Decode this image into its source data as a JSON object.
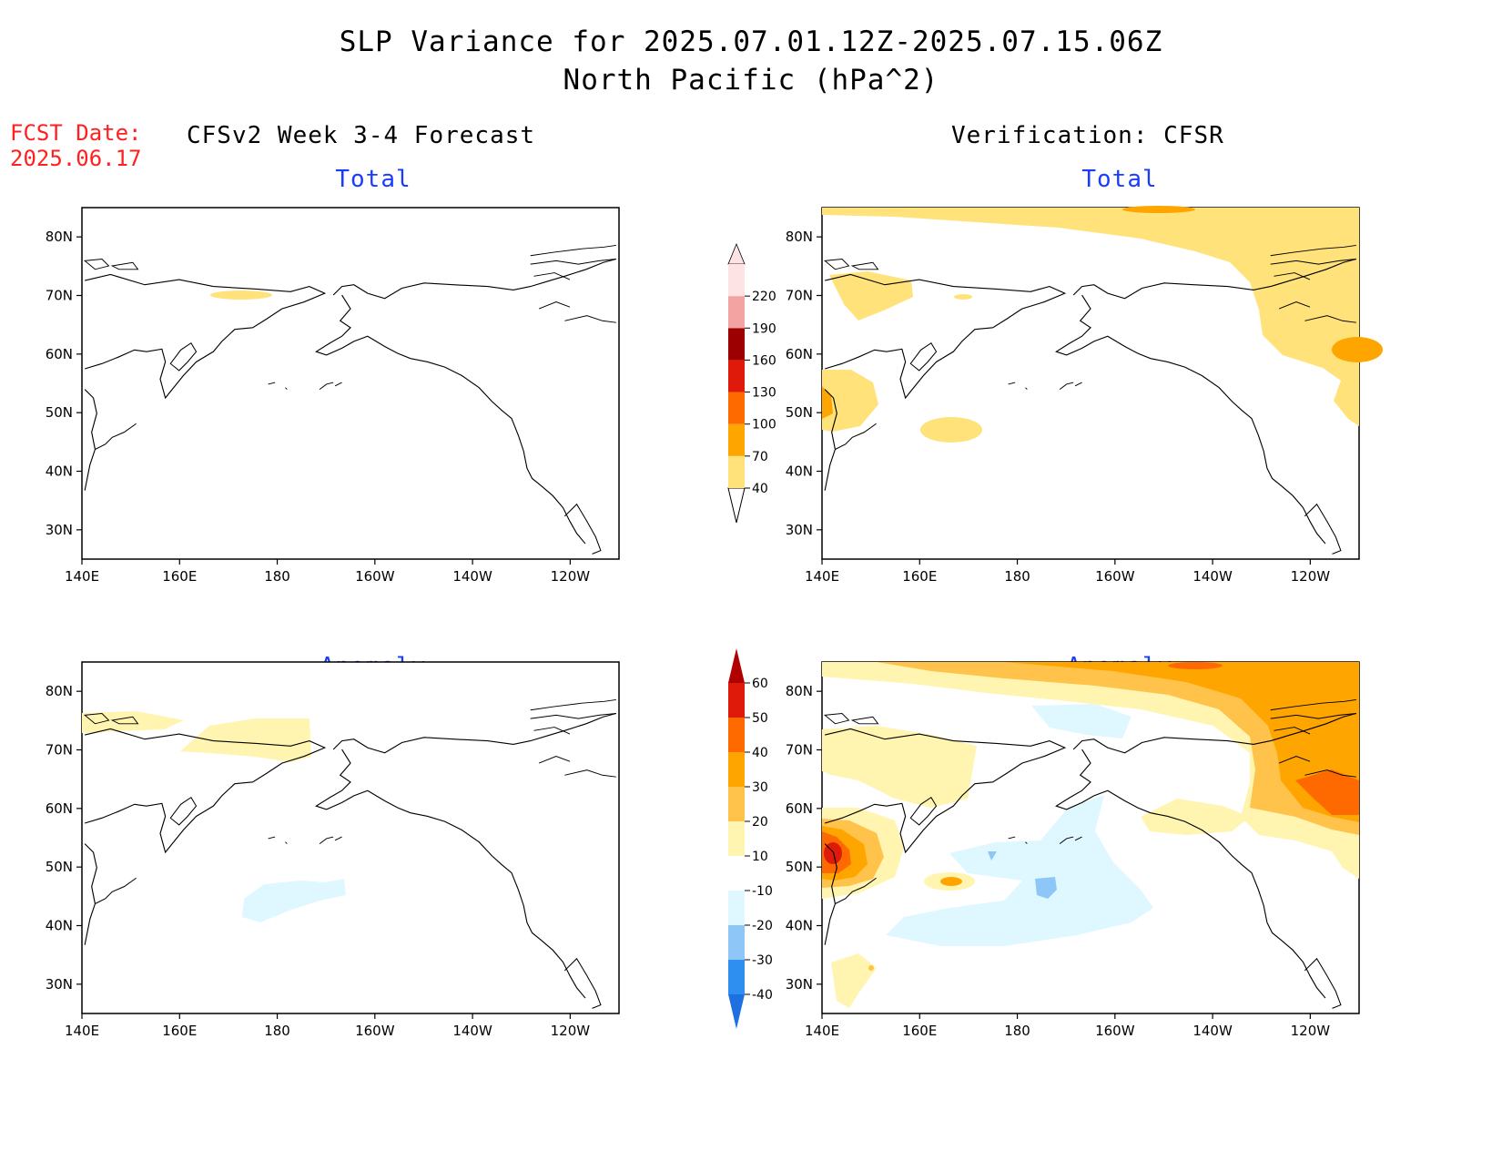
{
  "title": {
    "line1": "SLP Variance for 2025.07.01.12Z-2025.07.15.06Z",
    "line2": "North Pacific (hPa^2)"
  },
  "fcst_date": {
    "label": "FCST Date:",
    "value": "2025.06.17"
  },
  "columns": {
    "left": "CFSv2 Week 3-4 Forecast",
    "right": "Verification: CFSR"
  },
  "panels": {
    "top_left": {
      "title": "Total"
    },
    "top_right": {
      "title": "Total"
    },
    "bottom_left": {
      "title": "Anomaly"
    },
    "bottom_right": {
      "title": "Anomaly"
    }
  },
  "axes": {
    "lon_ticks": [
      "140E",
      "160E",
      "180",
      "160W",
      "140W",
      "120W"
    ],
    "lat_ticks": [
      "80N",
      "70N",
      "60N",
      "50N",
      "40N",
      "30N"
    ],
    "lon_range": [
      140,
      250
    ],
    "lat_range": [
      25,
      85
    ]
  },
  "colorbars": {
    "total": {
      "labels": [
        "40",
        "70",
        "100",
        "130",
        "160",
        "190",
        "220"
      ],
      "colors": [
        "#ffe27a",
        "#ffa500",
        "#ff6a00",
        "#e01a0a",
        "#9c0000",
        "#f4a3a3",
        "#fde3e3"
      ]
    },
    "anomaly": {
      "labels": [
        "-40",
        "-30",
        "-20",
        "-10",
        "10",
        "20",
        "30",
        "40",
        "50",
        "60"
      ],
      "colors": [
        "#1e6fe0",
        "#2f8ff0",
        "#8ec7f7",
        "#dff8ff",
        "#ffffff",
        "#fff5b0",
        "#ffc24a",
        "#ffa500",
        "#ff6a00",
        "#e01a0a",
        "#b00000"
      ]
    }
  },
  "chart_data": {
    "type": "heatmap",
    "title": "SLP Variance for 2025.07.01.12Z-2025.07.15.06Z North Pacific (hPa^2)",
    "x_axis": "longitude",
    "y_axis": "latitude",
    "xlim": [
      "140E",
      "110W"
    ],
    "ylim": [
      "25N",
      "85N"
    ],
    "panels": [
      {
        "name": "CFSv2 Week 3-4 Forecast Total",
        "regions": [
          {
            "level": "40-70",
            "lon": 163,
            "lat": 70
          }
        ]
      },
      {
        "name": "Verification: CFSR Total",
        "regions": [
          {
            "level": "40-70",
            "lon_range": [
              140,
              250
            ],
            "lat_range": [
              78,
              85
            ]
          },
          {
            "level": "40-70",
            "lon_range": [
              225,
              250
            ],
            "lat_range": [
              50,
              82
            ]
          },
          {
            "level": "70-100",
            "lon": 248,
            "lat": 59
          },
          {
            "level": "40-70",
            "lon_range": [
              140,
              151
            ],
            "lat_range": [
              46,
              55
            ]
          },
          {
            "level": "70-100",
            "lon": 141,
            "lat": 52
          },
          {
            "level": "40-70",
            "lon_range": [
              144,
              155
            ],
            "lat_range": [
              66,
              73
            ]
          },
          {
            "level": "40-70",
            "lon_range": [
              162,
              171
            ],
            "lat_range": [
              47,
              49
            ]
          }
        ]
      },
      {
        "name": "CFSv2 Week 3-4 Forecast Anomaly",
        "regions": [
          {
            "level": "10-20",
            "lon_range": [
              140,
              162
            ],
            "lat_range": [
              71,
              76
            ]
          },
          {
            "level": "10-20",
            "lon_range": [
              160,
              187
            ],
            "lat_range": [
              69,
              75
            ]
          },
          {
            "level": "-10 to -20",
            "lon_range": [
              172,
              193
            ],
            "lat_range": [
              41,
              48
            ]
          }
        ]
      },
      {
        "name": "Verification: CFSR Anomaly",
        "regions": [
          {
            "level": "30-50",
            "lon_range": [
              140,
              148
            ],
            "lat_range": [
              46,
              58
            ]
          },
          {
            "level": "50-60",
            "lon": 142,
            "lat": 53
          },
          {
            "level": "20-50",
            "lon_range": [
              225,
              250
            ],
            "lat_range": [
              58,
              85
            ]
          },
          {
            "level": "10-30",
            "lon_range": [
              140,
              250
            ],
            "lat_range": [
              78,
              85
            ]
          },
          {
            "level": "-10 to -20",
            "lon_range": [
              152,
              215
            ],
            "lat_range": [
              39,
              60
            ]
          },
          {
            "level": "-20 to -30",
            "lon": 184,
            "lat": 46
          }
        ]
      }
    ]
  }
}
